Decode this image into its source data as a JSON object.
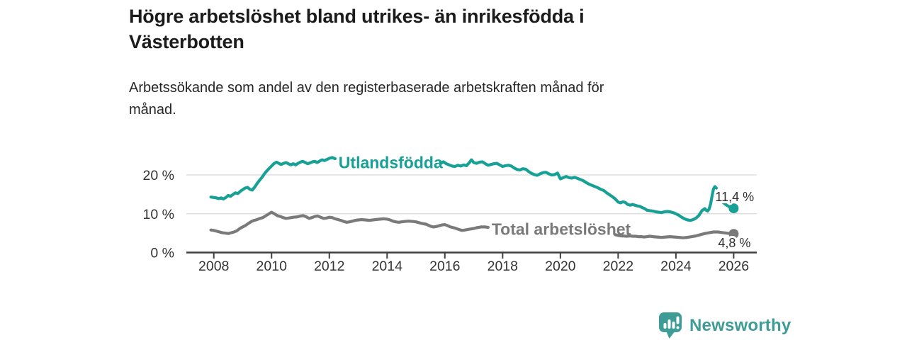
{
  "header": {
    "title_line1": "Högre arbetslöshet bland utrikes- än inrikesfödda i",
    "title_line2": "Västerbotten",
    "subtitle_line1": "Arbetssökande som andel av den registerbaserade arbetskraften månad för",
    "subtitle_line2": "månad."
  },
  "footer": {
    "brand": "Newsworthy",
    "brand_color": "#3d9c96",
    "logo_icon": "bar-chart-speech-bubble"
  },
  "colors": {
    "foreign_born_line": "#16a096",
    "total_line": "#7a7a7a",
    "axis": "#3f3f3f",
    "grid": "#d9d9d9",
    "tick_text": "#333333",
    "value_label_text": "#2e2e2e",
    "background": "#ffffff"
  },
  "chart_data": {
    "type": "line",
    "title": "Högre arbetslöshet bland utrikes- än inrikesfödda i Västerbotten",
    "subtitle": "Arbetssökande som andel av den registerbaserade arbetskraften månad för månad.",
    "unit": "%",
    "grid": "horizontal",
    "legend": "inline-labels",
    "x_axis": {
      "ticks": [
        2008,
        2010,
        2012,
        2014,
        2016,
        2018,
        2020,
        2022,
        2024,
        2026
      ],
      "range": [
        2007.05,
        2026.8
      ]
    },
    "y_axis": {
      "ticks": [
        0,
        10,
        20
      ],
      "tick_labels": [
        "0 %",
        "10 %",
        "20 %"
      ],
      "range": [
        0,
        27
      ]
    },
    "series": [
      {
        "name": "Utlandsfödda",
        "color": "#16a096",
        "end_value": 11.4,
        "end_label": "11,4 %",
        "name_label_pos": {
          "year": 2012.32,
          "pct": 21.7
        },
        "label_gaps": [
          [
            2012.25,
            2015.85
          ],
          [
            2025.42,
            2025.5
          ]
        ],
        "points": [
          [
            2007.9,
            14.3
          ],
          [
            2008.0,
            14.2
          ],
          [
            2008.08,
            14.1
          ],
          [
            2008.17,
            13.9
          ],
          [
            2008.25,
            14.1
          ],
          [
            2008.33,
            13.8
          ],
          [
            2008.42,
            14.2
          ],
          [
            2008.5,
            14.7
          ],
          [
            2008.58,
            14.5
          ],
          [
            2008.67,
            15.0
          ],
          [
            2008.75,
            15.4
          ],
          [
            2008.83,
            15.2
          ],
          [
            2008.92,
            15.8
          ],
          [
            2009.0,
            16.2
          ],
          [
            2009.08,
            16.6
          ],
          [
            2009.17,
            16.8
          ],
          [
            2009.25,
            16.3
          ],
          [
            2009.33,
            16.1
          ],
          [
            2009.42,
            16.9
          ],
          [
            2009.5,
            17.8
          ],
          [
            2009.58,
            18.6
          ],
          [
            2009.67,
            19.4
          ],
          [
            2009.75,
            20.3
          ],
          [
            2009.83,
            21.0
          ],
          [
            2009.92,
            21.7
          ],
          [
            2010.0,
            22.3
          ],
          [
            2010.08,
            22.9
          ],
          [
            2010.17,
            23.3
          ],
          [
            2010.25,
            23.0
          ],
          [
            2010.33,
            22.7
          ],
          [
            2010.42,
            23.0
          ],
          [
            2010.5,
            23.2
          ],
          [
            2010.58,
            22.9
          ],
          [
            2010.67,
            22.6
          ],
          [
            2010.75,
            22.9
          ],
          [
            2010.83,
            22.6
          ],
          [
            2010.92,
            23.0
          ],
          [
            2011.0,
            23.3
          ],
          [
            2011.08,
            23.5
          ],
          [
            2011.17,
            23.2
          ],
          [
            2011.25,
            22.9
          ],
          [
            2011.33,
            23.1
          ],
          [
            2011.42,
            23.4
          ],
          [
            2011.5,
            23.5
          ],
          [
            2011.58,
            23.2
          ],
          [
            2011.67,
            23.6
          ],
          [
            2011.75,
            23.9
          ],
          [
            2011.83,
            23.7
          ],
          [
            2011.92,
            24.0
          ],
          [
            2012.0,
            24.3
          ],
          [
            2012.1,
            24.5
          ],
          [
            2012.2,
            24.2
          ],
          [
            2015.85,
            23.0
          ],
          [
            2015.95,
            23.4
          ],
          [
            2016.05,
            22.9
          ],
          [
            2016.15,
            22.6
          ],
          [
            2016.25,
            22.3
          ],
          [
            2016.35,
            22.2
          ],
          [
            2016.45,
            22.5
          ],
          [
            2016.55,
            22.3
          ],
          [
            2016.65,
            22.6
          ],
          [
            2016.75,
            22.4
          ],
          [
            2016.85,
            23.2
          ],
          [
            2016.92,
            23.9
          ],
          [
            2017.0,
            23.2
          ],
          [
            2017.1,
            23.0
          ],
          [
            2017.2,
            23.3
          ],
          [
            2017.3,
            23.4
          ],
          [
            2017.4,
            22.9
          ],
          [
            2017.5,
            22.5
          ],
          [
            2017.6,
            22.7
          ],
          [
            2017.7,
            22.9
          ],
          [
            2017.8,
            23.0
          ],
          [
            2017.9,
            22.6
          ],
          [
            2018.0,
            22.2
          ],
          [
            2018.1,
            22.4
          ],
          [
            2018.2,
            22.5
          ],
          [
            2018.3,
            22.3
          ],
          [
            2018.4,
            21.8
          ],
          [
            2018.5,
            21.4
          ],
          [
            2018.6,
            21.3
          ],
          [
            2018.7,
            21.6
          ],
          [
            2018.8,
            21.5
          ],
          [
            2018.9,
            20.9
          ],
          [
            2019.0,
            20.4
          ],
          [
            2019.1,
            20.1
          ],
          [
            2019.2,
            19.9
          ],
          [
            2019.3,
            20.3
          ],
          [
            2019.4,
            20.6
          ],
          [
            2019.5,
            20.7
          ],
          [
            2019.6,
            20.3
          ],
          [
            2019.7,
            20.0
          ],
          [
            2019.8,
            20.1
          ],
          [
            2019.9,
            20.5
          ],
          [
            2020.0,
            19.0
          ],
          [
            2020.1,
            19.3
          ],
          [
            2020.2,
            19.6
          ],
          [
            2020.3,
            19.3
          ],
          [
            2020.4,
            19.2
          ],
          [
            2020.5,
            19.4
          ],
          [
            2020.6,
            19.1
          ],
          [
            2020.7,
            18.8
          ],
          [
            2020.8,
            18.5
          ],
          [
            2020.9,
            18.0
          ],
          [
            2021.0,
            17.6
          ],
          [
            2021.1,
            17.3
          ],
          [
            2021.2,
            17.0
          ],
          [
            2021.3,
            16.7
          ],
          [
            2021.4,
            16.3
          ],
          [
            2021.5,
            16.0
          ],
          [
            2021.6,
            15.4
          ],
          [
            2021.7,
            14.9
          ],
          [
            2021.8,
            14.4
          ],
          [
            2021.9,
            13.8
          ],
          [
            2022.0,
            13.0
          ],
          [
            2022.08,
            12.8
          ],
          [
            2022.17,
            13.1
          ],
          [
            2022.25,
            12.9
          ],
          [
            2022.33,
            12.4
          ],
          [
            2022.42,
            12.2
          ],
          [
            2022.5,
            12.4
          ],
          [
            2022.58,
            12.2
          ],
          [
            2022.67,
            12.0
          ],
          [
            2022.75,
            11.9
          ],
          [
            2022.83,
            11.6
          ],
          [
            2022.92,
            11.3
          ],
          [
            2023.0,
            10.9
          ],
          [
            2023.1,
            10.8
          ],
          [
            2023.2,
            10.7
          ],
          [
            2023.3,
            10.5
          ],
          [
            2023.4,
            10.4
          ],
          [
            2023.5,
            10.3
          ],
          [
            2023.6,
            10.5
          ],
          [
            2023.7,
            10.6
          ],
          [
            2023.8,
            10.5
          ],
          [
            2023.9,
            10.3
          ],
          [
            2024.0,
            10.0
          ],
          [
            2024.1,
            9.6
          ],
          [
            2024.2,
            9.1
          ],
          [
            2024.3,
            8.7
          ],
          [
            2024.4,
            8.4
          ],
          [
            2024.5,
            8.3
          ],
          [
            2024.6,
            8.5
          ],
          [
            2024.7,
            8.9
          ],
          [
            2024.8,
            9.6
          ],
          [
            2024.9,
            10.8
          ],
          [
            2025.0,
            11.3
          ],
          [
            2025.05,
            10.9
          ],
          [
            2025.1,
            10.7
          ],
          [
            2025.15,
            11.2
          ],
          [
            2025.2,
            12.5
          ],
          [
            2025.25,
            14.5
          ],
          [
            2025.3,
            16.4
          ],
          [
            2025.35,
            17.0
          ],
          [
            2025.4,
            16.6
          ],
          [
            2025.52,
            14.0
          ],
          [
            2025.62,
            13.0
          ],
          [
            2025.74,
            12.3
          ],
          [
            2025.87,
            11.7
          ],
          [
            2026.0,
            11.4
          ]
        ]
      },
      {
        "name": "Total arbetslöshet",
        "color": "#7a7a7a",
        "end_value": 4.8,
        "end_label": "4,8 %",
        "name_label_pos": {
          "year": 2017.62,
          "pct": 4.55
        },
        "label_gaps": [
          [
            2017.55,
            2021.88
          ]
        ],
        "points": [
          [
            2007.9,
            5.8
          ],
          [
            2008.0,
            5.7
          ],
          [
            2008.1,
            5.5
          ],
          [
            2008.2,
            5.3
          ],
          [
            2008.3,
            5.1
          ],
          [
            2008.4,
            5.0
          ],
          [
            2008.5,
            4.9
          ],
          [
            2008.6,
            5.1
          ],
          [
            2008.7,
            5.3
          ],
          [
            2008.8,
            5.6
          ],
          [
            2008.9,
            6.2
          ],
          [
            2009.0,
            6.6
          ],
          [
            2009.1,
            7.0
          ],
          [
            2009.2,
            7.5
          ],
          [
            2009.3,
            8.0
          ],
          [
            2009.4,
            8.3
          ],
          [
            2009.5,
            8.5
          ],
          [
            2009.6,
            8.8
          ],
          [
            2009.7,
            9.0
          ],
          [
            2009.85,
            9.7
          ],
          [
            2010.0,
            10.4
          ],
          [
            2010.1,
            10.0
          ],
          [
            2010.2,
            9.5
          ],
          [
            2010.3,
            9.3
          ],
          [
            2010.4,
            9.0
          ],
          [
            2010.5,
            8.8
          ],
          [
            2010.6,
            8.9
          ],
          [
            2010.75,
            9.1
          ],
          [
            2010.9,
            9.2
          ],
          [
            2011.0,
            9.4
          ],
          [
            2011.1,
            9.5
          ],
          [
            2011.2,
            9.2
          ],
          [
            2011.3,
            8.8
          ],
          [
            2011.4,
            9.0
          ],
          [
            2011.5,
            9.3
          ],
          [
            2011.6,
            9.4
          ],
          [
            2011.7,
            9.1
          ],
          [
            2011.8,
            8.8
          ],
          [
            2011.9,
            8.9
          ],
          [
            2012.0,
            9.1
          ],
          [
            2012.1,
            9.0
          ],
          [
            2012.2,
            8.7
          ],
          [
            2012.3,
            8.5
          ],
          [
            2012.4,
            8.3
          ],
          [
            2012.5,
            8.0
          ],
          [
            2012.6,
            7.8
          ],
          [
            2012.7,
            7.9
          ],
          [
            2012.8,
            8.1
          ],
          [
            2012.9,
            8.3
          ],
          [
            2013.0,
            8.4
          ],
          [
            2013.1,
            8.5
          ],
          [
            2013.25,
            8.4
          ],
          [
            2013.4,
            8.3
          ],
          [
            2013.5,
            8.4
          ],
          [
            2013.6,
            8.5
          ],
          [
            2013.75,
            8.6
          ],
          [
            2013.9,
            8.7
          ],
          [
            2014.0,
            8.6
          ],
          [
            2014.1,
            8.4
          ],
          [
            2014.2,
            8.1
          ],
          [
            2014.3,
            7.9
          ],
          [
            2014.4,
            7.8
          ],
          [
            2014.5,
            7.9
          ],
          [
            2014.6,
            8.0
          ],
          [
            2014.75,
            8.1
          ],
          [
            2014.9,
            8.0
          ],
          [
            2015.0,
            7.9
          ],
          [
            2015.1,
            7.7
          ],
          [
            2015.2,
            7.5
          ],
          [
            2015.35,
            7.3
          ],
          [
            2015.5,
            6.8
          ],
          [
            2015.6,
            6.6
          ],
          [
            2015.7,
            6.7
          ],
          [
            2015.8,
            6.9
          ],
          [
            2015.9,
            7.1
          ],
          [
            2016.0,
            7.2
          ],
          [
            2016.1,
            6.9
          ],
          [
            2016.2,
            6.6
          ],
          [
            2016.35,
            6.3
          ],
          [
            2016.5,
            5.9
          ],
          [
            2016.6,
            5.7
          ],
          [
            2016.7,
            5.8
          ],
          [
            2016.85,
            6.0
          ],
          [
            2017.0,
            6.2
          ],
          [
            2017.1,
            6.4
          ],
          [
            2017.25,
            6.6
          ],
          [
            2017.4,
            6.6
          ],
          [
            2017.5,
            6.5
          ],
          [
            2021.9,
            4.6
          ],
          [
            2022.0,
            4.4
          ],
          [
            2022.1,
            4.3
          ],
          [
            2022.2,
            4.25
          ],
          [
            2022.3,
            4.2
          ],
          [
            2022.4,
            4.3
          ],
          [
            2022.5,
            4.2
          ],
          [
            2022.6,
            4.2
          ],
          [
            2022.7,
            4.1
          ],
          [
            2022.8,
            4.1
          ],
          [
            2022.9,
            4.0
          ],
          [
            2023.0,
            4.1
          ],
          [
            2023.1,
            4.2
          ],
          [
            2023.2,
            4.1
          ],
          [
            2023.35,
            4.0
          ],
          [
            2023.5,
            3.9
          ],
          [
            2023.65,
            4.0
          ],
          [
            2023.8,
            4.1
          ],
          [
            2023.95,
            4.0
          ],
          [
            2024.1,
            3.9
          ],
          [
            2024.25,
            3.8
          ],
          [
            2024.4,
            3.9
          ],
          [
            2024.55,
            4.1
          ],
          [
            2024.7,
            4.3
          ],
          [
            2024.85,
            4.6
          ],
          [
            2025.0,
            4.9
          ],
          [
            2025.15,
            5.1
          ],
          [
            2025.3,
            5.3
          ],
          [
            2025.45,
            5.3
          ],
          [
            2025.6,
            5.15
          ],
          [
            2025.75,
            5.0
          ],
          [
            2025.9,
            4.9
          ],
          [
            2026.0,
            4.8
          ]
        ]
      }
    ]
  }
}
